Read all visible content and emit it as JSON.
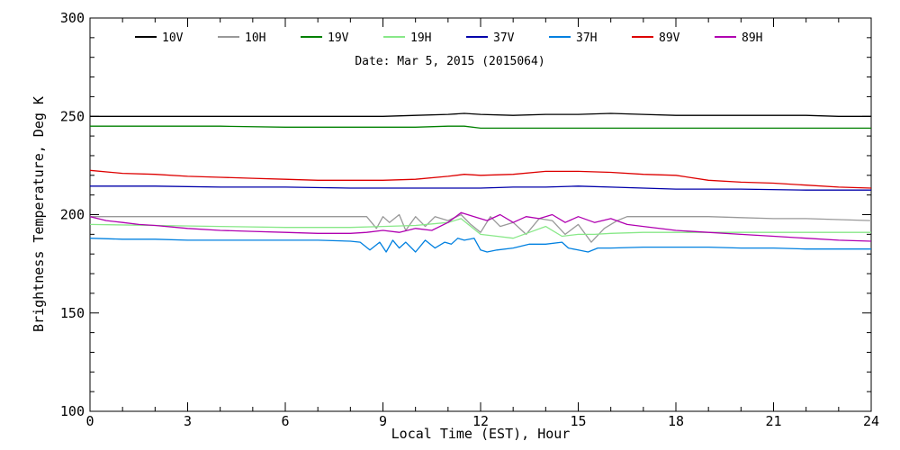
{
  "chart_data": {
    "type": "line",
    "title": "",
    "subtitle": "Date: Mar  5, 2015 (2015064)",
    "xlabel": "Local Time (EST), Hour",
    "ylabel": "Brightness Temperature, Deg K",
    "xlim": [
      0,
      24
    ],
    "ylim": [
      100,
      300
    ],
    "xticks": [
      0,
      3,
      6,
      9,
      12,
      15,
      18,
      21,
      24
    ],
    "yticks": [
      100,
      150,
      200,
      250,
      300
    ],
    "grid": false,
    "legend_position": "top",
    "series": [
      {
        "name": "10V",
        "color": "#000000",
        "x": [
          0,
          1,
          2,
          3,
          4,
          5,
          6,
          7,
          8,
          9,
          10,
          11,
          11.5,
          12,
          13,
          14,
          15,
          16,
          17,
          18,
          19,
          20,
          21,
          22,
          23,
          24
        ],
        "y": [
          250,
          250,
          250,
          250,
          250,
          250,
          250,
          250,
          250,
          250,
          250.5,
          251,
          251.5,
          251,
          250.5,
          251,
          251,
          251.5,
          251,
          250.5,
          250.5,
          250.5,
          250.5,
          250.5,
          250,
          250
        ]
      },
      {
        "name": "10H",
        "color": "#999999",
        "x": [
          0,
          1,
          2,
          3,
          4,
          5,
          6,
          7,
          8,
          8.5,
          8.8,
          9.0,
          9.2,
          9.5,
          9.7,
          10,
          10.3,
          10.6,
          11,
          11.4,
          11.7,
          12,
          12.3,
          12.6,
          13,
          13.4,
          13.8,
          14.2,
          14.6,
          15,
          15.4,
          15.8,
          16.2,
          16.5,
          17,
          18,
          19,
          20,
          21,
          22,
          23,
          24
        ],
        "y": [
          199,
          199,
          199,
          199,
          199,
          199,
          199,
          199,
          199,
          199,
          193,
          199,
          196,
          200,
          192,
          199,
          194,
          199,
          197,
          200,
          195,
          191,
          199,
          194,
          196,
          190,
          198,
          197,
          190,
          195,
          186,
          193,
          197,
          199,
          199,
          199,
          199,
          198.5,
          198,
          198,
          197.5,
          197
        ]
      },
      {
        "name": "19V",
        "color": "#008000",
        "x": [
          0,
          2,
          4,
          6,
          8,
          10,
          11,
          11.5,
          12,
          13,
          14,
          15,
          16,
          18,
          20,
          22,
          24
        ],
        "y": [
          245,
          245,
          245,
          244.5,
          244.5,
          244.5,
          245,
          245,
          244,
          244,
          244,
          244,
          244,
          244,
          244,
          244,
          244
        ]
      },
      {
        "name": "19H",
        "color": "#88e888",
        "x": [
          0,
          2,
          4,
          6,
          8,
          9,
          10,
          11,
          11.4,
          12,
          12.5,
          13,
          13.5,
          14,
          14.5,
          15,
          15.5,
          16,
          17,
          18,
          19,
          20,
          21,
          22,
          23,
          24
        ],
        "y": [
          195,
          194.5,
          194,
          193.5,
          193.5,
          194,
          194.5,
          196,
          198,
          190,
          189,
          188,
          191,
          194,
          189,
          190,
          190,
          190.5,
          191,
          191,
          191,
          191,
          191,
          191,
          191,
          191
        ]
      },
      {
        "name": "37V",
        "color": "#0000aa",
        "x": [
          0,
          2,
          4,
          6,
          8,
          10,
          12,
          13,
          14,
          15,
          16,
          17,
          18,
          20,
          22,
          24
        ],
        "y": [
          214.5,
          214.5,
          214,
          214,
          213.5,
          213.5,
          213.5,
          214,
          214,
          214.5,
          214,
          213.5,
          213,
          213,
          212.5,
          212.5
        ]
      },
      {
        "name": "37H",
        "color": "#0080e0",
        "x": [
          0,
          1,
          2,
          3,
          4,
          5,
          6,
          7,
          8,
          8.3,
          8.6,
          8.9,
          9.1,
          9.3,
          9.5,
          9.7,
          10.0,
          10.3,
          10.6,
          10.9,
          11.1,
          11.3,
          11.5,
          11.8,
          12.0,
          12.2,
          12.5,
          13,
          13.5,
          14,
          14.5,
          14.7,
          15.0,
          15.3,
          15.6,
          16,
          17,
          18,
          19,
          20,
          21,
          22,
          23,
          24
        ],
        "y": [
          188,
          187.5,
          187.5,
          187,
          187,
          187,
          187,
          187,
          186.5,
          186,
          182,
          186,
          181,
          187,
          183,
          186,
          181,
          187,
          183,
          186,
          185,
          188,
          187,
          188,
          182,
          181,
          182,
          183,
          185,
          185,
          186,
          183,
          182,
          181,
          183,
          183,
          183.5,
          183.5,
          183.5,
          183,
          183,
          182.5,
          182.5,
          182.5
        ]
      },
      {
        "name": "89V",
        "color": "#dd0000",
        "x": [
          0,
          1,
          2,
          3,
          4,
          5,
          6,
          7,
          8,
          9,
          10,
          11,
          11.5,
          12,
          13,
          14,
          15,
          16,
          17,
          18,
          19,
          20,
          21,
          22,
          23,
          24
        ],
        "y": [
          222.5,
          221,
          220.5,
          219.5,
          219,
          218.5,
          218,
          217.5,
          217.5,
          217.5,
          218,
          219.5,
          220.5,
          220,
          220.5,
          222,
          222,
          221.5,
          220.5,
          220,
          217.5,
          216.5,
          216,
          215,
          214,
          213.5
        ]
      },
      {
        "name": "89H",
        "color": "#b000b0",
        "x": [
          0,
          0.5,
          1,
          1.5,
          2,
          3,
          4,
          5,
          6,
          7,
          8,
          8.5,
          9,
          9.5,
          10,
          10.5,
          11,
          11.4,
          11.8,
          12.2,
          12.6,
          13,
          13.4,
          13.8,
          14.2,
          14.6,
          15,
          15.5,
          16,
          16.5,
          17,
          18,
          19,
          20,
          21,
          22,
          23,
          24
        ],
        "y": [
          199,
          197,
          196,
          195,
          194.5,
          193,
          192,
          191.5,
          191,
          190.5,
          190.5,
          191,
          192,
          191,
          193,
          192,
          196,
          201,
          199,
          197,
          200,
          196,
          199,
          198,
          200,
          196,
          199,
          196,
          198,
          195,
          194,
          192,
          191,
          190,
          189,
          188,
          187,
          186.5
        ]
      }
    ]
  }
}
